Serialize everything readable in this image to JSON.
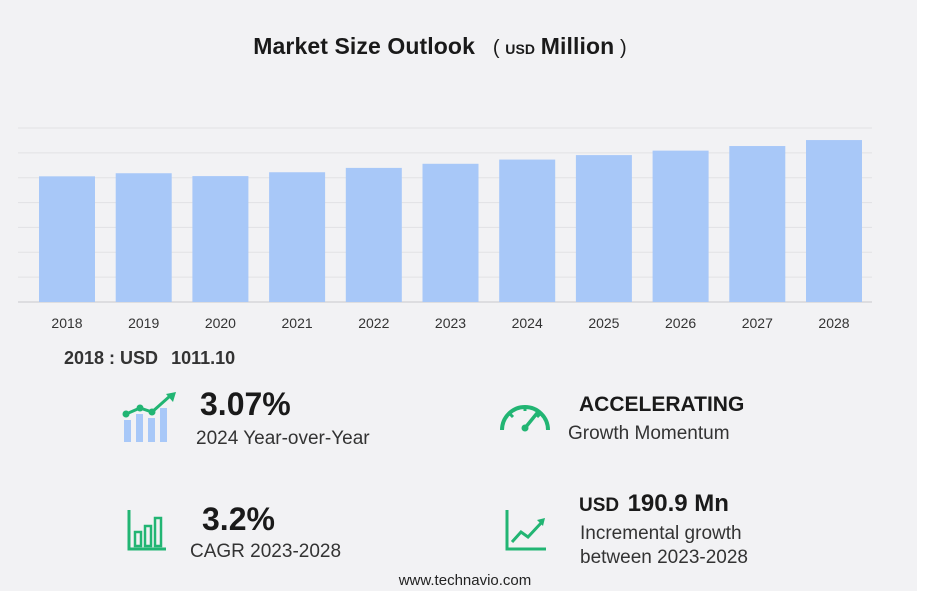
{
  "title": {
    "main": "Market Size Outlook",
    "paren_open": "(",
    "unit_small": "USD",
    "unit_big": "Million",
    "paren_close": ")"
  },
  "chart_data": {
    "type": "bar",
    "categories": [
      "2018",
      "2019",
      "2020",
      "2021",
      "2022",
      "2023",
      "2024",
      "2025",
      "2026",
      "2027",
      "2028"
    ],
    "values": [
      1011.1,
      1036,
      1013,
      1044,
      1079,
      1112,
      1146,
      1182,
      1218,
      1255,
      1303
    ],
    "ylim": [
      0,
      1400
    ],
    "grid": true,
    "bar_color": "#a8c8f8",
    "title": "Market Size Outlook (USD Million)"
  },
  "base": {
    "year_label": "2018 : USD",
    "value": "1011.10"
  },
  "stats": {
    "yoy": {
      "value": "3.07%",
      "caption": "2024 Year-over-Year"
    },
    "momentum": {
      "head": "ACCELERATING",
      "caption": "Growth Momentum"
    },
    "cagr": {
      "value": "3.2%",
      "caption": "CAGR 2023-2028"
    },
    "incremental": {
      "prefix": "USD",
      "value": "190.9 Mn",
      "caption_line1": "Incremental growth",
      "caption_line2": "between 2023-2028"
    }
  },
  "icons": {
    "yoy": "bar-line-growth-icon",
    "momentum": "speedometer-icon",
    "cagr": "bar-chart-icon",
    "incremental": "line-growth-icon",
    "accent": "#22b573"
  },
  "footer": {
    "site": "www.technavio.com"
  }
}
